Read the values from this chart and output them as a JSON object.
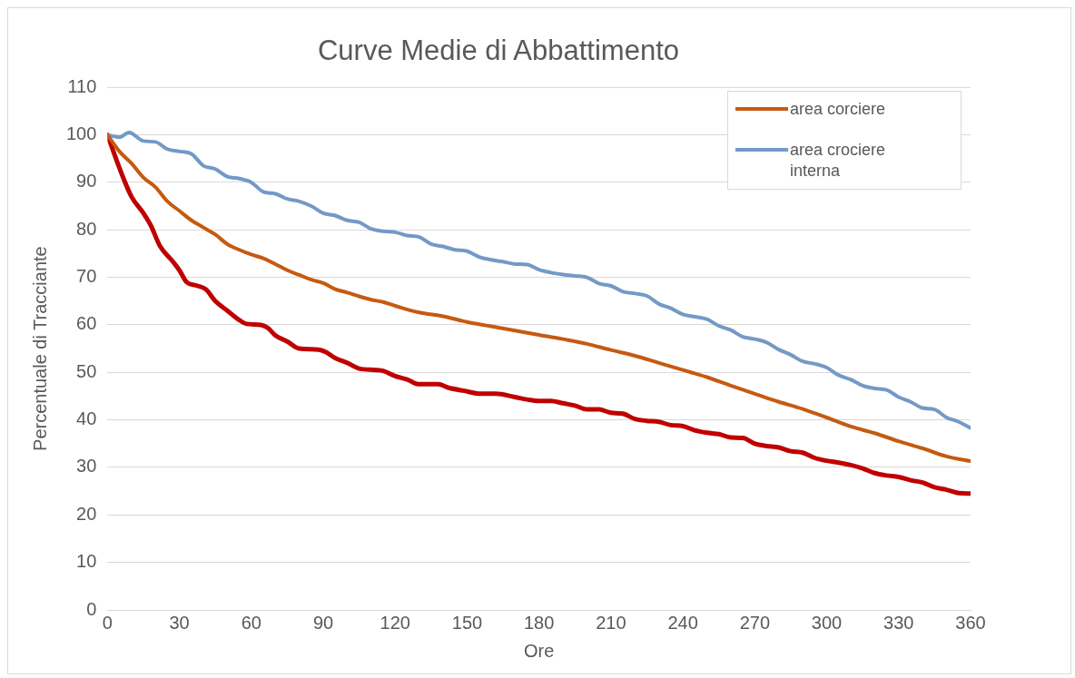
{
  "chart_data": {
    "type": "line",
    "title": "Curve Medie di Abbattimento",
    "xlabel": "Ore",
    "ylabel": "Percentuale di Tracciante",
    "xlim": [
      0,
      360
    ],
    "xticks": [
      0,
      30,
      60,
      90,
      120,
      150,
      180,
      210,
      240,
      270,
      300,
      330,
      360
    ],
    "ylim": [
      0,
      110
    ],
    "yticks": [
      0,
      10,
      20,
      30,
      40,
      50,
      60,
      70,
      80,
      90,
      100,
      110
    ],
    "grid": "y",
    "legend": "top right",
    "marker": "none",
    "line_style": "solid",
    "series": [
      {
        "name": "area corciere",
        "color": "#c55a11",
        "x": [
          0,
          5,
          10,
          15,
          20,
          25,
          30,
          35,
          40,
          45,
          50,
          55,
          60,
          65,
          70,
          75,
          80,
          85,
          90,
          95,
          100,
          105,
          110,
          115,
          120,
          130,
          140,
          150,
          160,
          170,
          180,
          190,
          200,
          210,
          220,
          230,
          240,
          250,
          260,
          270,
          280,
          290,
          300,
          310,
          320,
          330,
          340,
          350,
          360
        ],
        "values": [
          100,
          96.5,
          94,
          91,
          89,
          86,
          84,
          82,
          80.5,
          79,
          77,
          75.8,
          74.8,
          74,
          72.8,
          71.5,
          70.5,
          69.5,
          68.8,
          67.5,
          66.8,
          66,
          65.3,
          64.8,
          64,
          62.6,
          61.8,
          60.6,
          59.7,
          58.8,
          57.9,
          57,
          56,
          54.7,
          53.5,
          52,
          50.5,
          49,
          47.2,
          45.5,
          43.8,
          42.3,
          40.5,
          38.6,
          37.2,
          35.5,
          34,
          32.3,
          31.3
        ]
      },
      {
        "name": "area crociere interna",
        "color": "#7399c6",
        "x": [
          0,
          5,
          9,
          15,
          20,
          25,
          30,
          35,
          40,
          45,
          50,
          55,
          60,
          65,
          70,
          75,
          80,
          85,
          90,
          95,
          100,
          105,
          110,
          115,
          120,
          125,
          130,
          135,
          140,
          145,
          150,
          155,
          160,
          165,
          170,
          175,
          180,
          185,
          190,
          195,
          200,
          205,
          210,
          215,
          220,
          225,
          230,
          235,
          240,
          245,
          250,
          255,
          260,
          265,
          270,
          275,
          280,
          285,
          290,
          295,
          300,
          305,
          310,
          315,
          320,
          325,
          330,
          335,
          340,
          345,
          350,
          355,
          360
        ],
        "values": [
          100,
          99.5,
          100.5,
          98.7,
          98.5,
          97,
          96.5,
          96,
          93.5,
          92.8,
          91.2,
          90.8,
          90,
          88,
          87.6,
          86.5,
          86,
          85,
          83.5,
          83,
          82,
          81.6,
          80.2,
          79.7,
          79.5,
          78.8,
          78.5,
          77,
          76.5,
          75.8,
          75.5,
          74.3,
          73.7,
          73.3,
          72.8,
          72.7,
          71.6,
          71,
          70.6,
          70.3,
          70,
          68.7,
          68.2,
          67,
          66.6,
          66.1,
          64.4,
          63.5,
          62.2,
          61.7,
          61.2,
          59.8,
          58.9,
          57.5,
          57,
          56.3,
          54.8,
          53.7,
          52.3,
          51.8,
          51,
          49.4,
          48.5,
          47.2,
          46.6,
          46.3,
          44.8,
          43.8,
          42.5,
          42.2,
          40.5,
          39.6,
          38.3
        ]
      },
      {
        "color": "#c00000",
        "x": [
          0,
          5,
          10,
          15,
          18,
          22,
          27,
          30,
          33,
          37,
          41,
          45,
          50,
          55,
          58,
          64,
          67,
          70,
          75,
          80,
          88,
          91,
          95,
          100,
          105,
          112,
          115,
          120,
          125,
          130,
          138,
          142,
          150,
          155,
          162,
          170,
          175,
          180,
          185,
          190,
          195,
          200,
          205,
          210,
          215,
          220,
          225,
          230,
          235,
          240,
          245,
          250,
          255,
          260,
          265,
          270,
          275,
          280,
          285,
          290,
          295,
          300,
          305,
          310,
          315,
          320,
          325,
          330,
          335,
          340,
          345,
          350,
          355,
          360
        ],
        "values": [
          100,
          93,
          87,
          83.5,
          81,
          76.5,
          73.5,
          71.5,
          69,
          68.3,
          67.5,
          65,
          63,
          61,
          60.2,
          60,
          59.3,
          57.8,
          56.5,
          55,
          54.8,
          54.3,
          53,
          52,
          50.8,
          50.5,
          50.3,
          49.2,
          48.5,
          47.5,
          47.5,
          46.8,
          46,
          45.5,
          45.5,
          44.8,
          44.3,
          44,
          44,
          43.5,
          43,
          42.2,
          42.2,
          41.5,
          41.3,
          40.2,
          39.8,
          39.6,
          38.9,
          38.7,
          37.8,
          37.3,
          37,
          36.3,
          36.2,
          35,
          34.5,
          34.2,
          33.4,
          33.1,
          32,
          31.4,
          31,
          30.5,
          29.8,
          28.8,
          28.3,
          28,
          27.3,
          26.8,
          25.8,
          25.3,
          24.6,
          24.5
        ]
      }
    ]
  }
}
